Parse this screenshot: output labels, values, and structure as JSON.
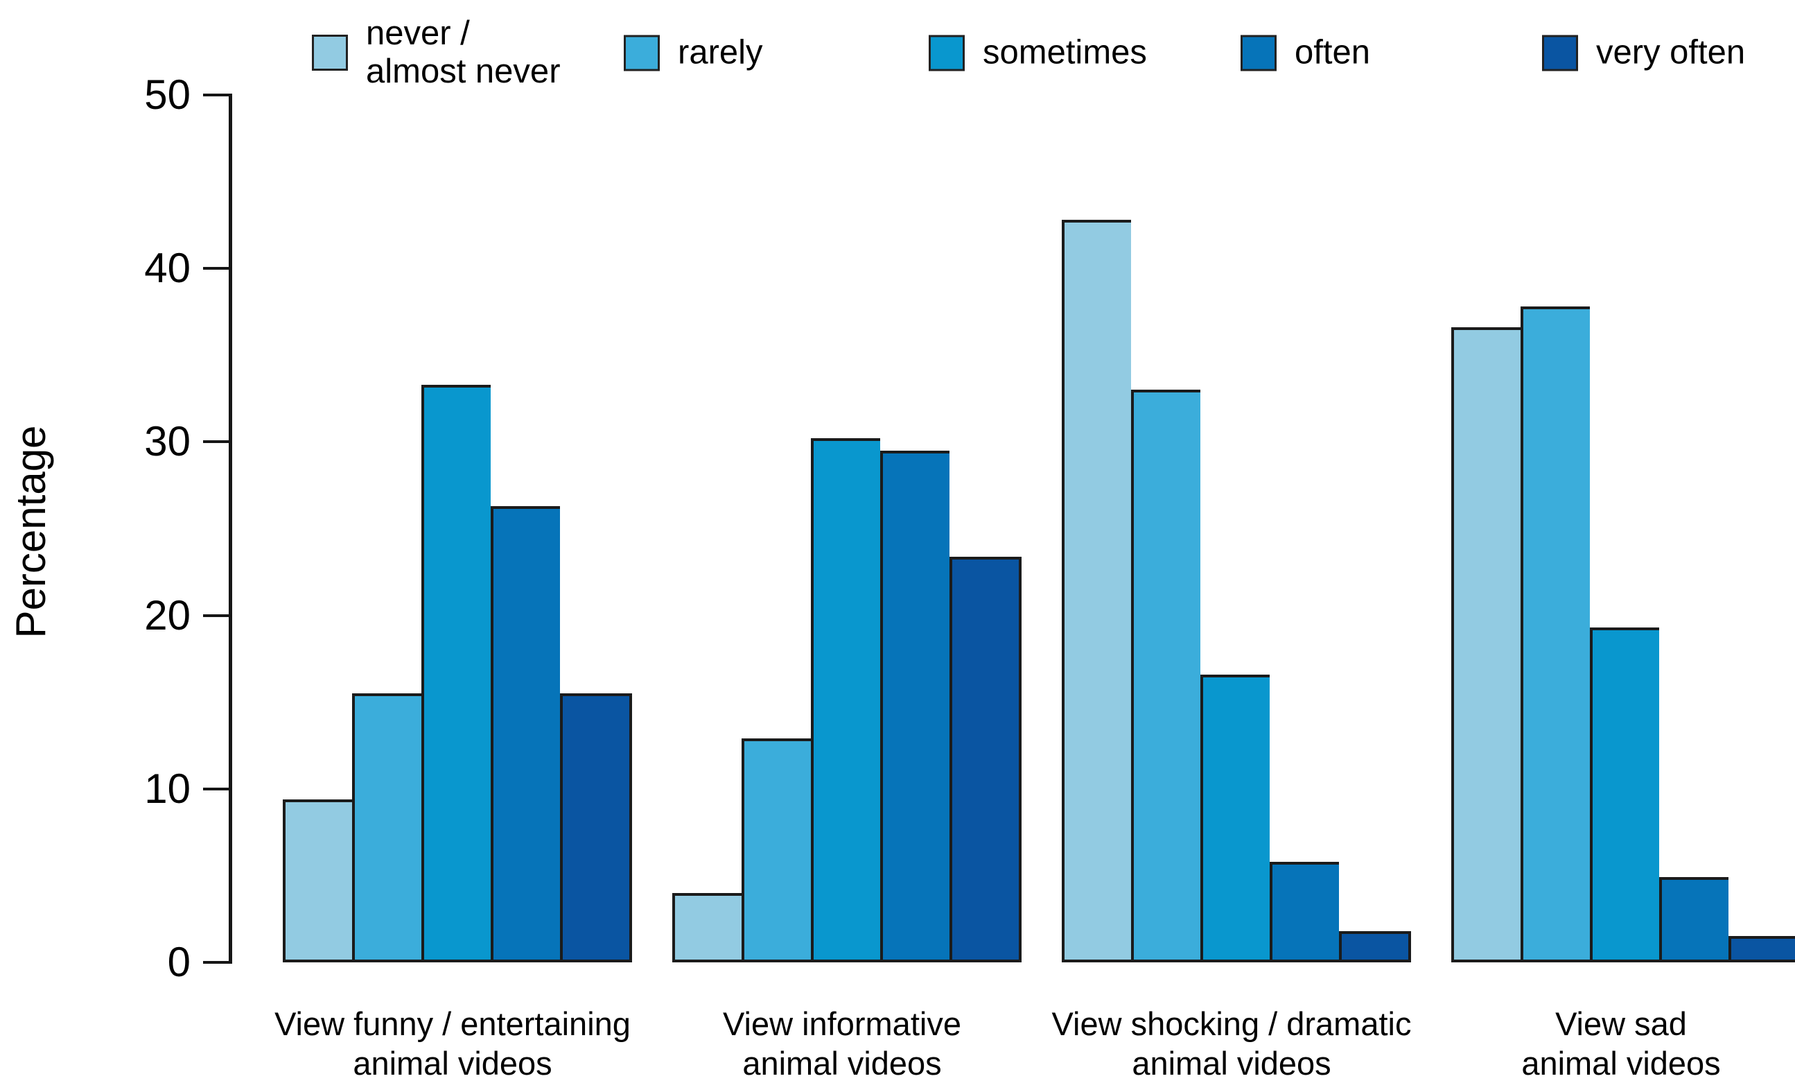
{
  "chart_data": {
    "type": "bar",
    "title": "",
    "ylabel": "Percentage",
    "xlabel": "",
    "ylim": [
      0,
      50
    ],
    "y_ticks": [
      0,
      10,
      20,
      30,
      40,
      50
    ],
    "grid": false,
    "legend_position": "top",
    "categories": [
      "View funny / entertaining\nanimal videos",
      "View informative\nanimal videos",
      "View shocking / dramatic\nanimal videos",
      "View sad\nanimal videos"
    ],
    "series": [
      {
        "name": "never /\nalmost never",
        "color": "#92CBE2",
        "values": [
          9.4,
          4.0,
          42.8,
          36.6
        ]
      },
      {
        "name": "rarely",
        "color": "#3BADDB",
        "values": [
          15.5,
          12.9,
          33.0,
          37.8
        ]
      },
      {
        "name": "sometimes",
        "color": "#0997CE",
        "values": [
          33.3,
          30.2,
          16.6,
          19.3
        ]
      },
      {
        "name": "often",
        "color": "#0674B9",
        "values": [
          26.3,
          29.5,
          5.8,
          4.9
        ]
      },
      {
        "name": "very often",
        "color": "#0A55A2",
        "values": [
          15.5,
          23.4,
          1.8,
          1.5
        ]
      }
    ],
    "bar_edge_color": "#1b1b1b"
  }
}
